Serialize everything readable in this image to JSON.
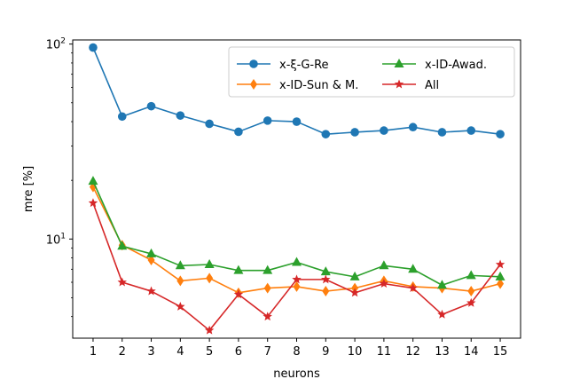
{
  "chart_data": {
    "type": "line",
    "title": "",
    "xlabel": "neurons",
    "ylabel": "mre [%]",
    "yscale": "log",
    "ylim": [
      3.1,
      105
    ],
    "xlim": [
      0.3,
      15.7
    ],
    "x": [
      1,
      2,
      3,
      4,
      5,
      6,
      7,
      8,
      9,
      10,
      11,
      12,
      13,
      14,
      15
    ],
    "x_ticks": [
      "1",
      "2",
      "3",
      "4",
      "5",
      "6",
      "7",
      "8",
      "9",
      "10",
      "11",
      "12",
      "13",
      "14",
      "15"
    ],
    "y_major_ticks": [
      {
        "value": 10,
        "base": "10",
        "exp": "1"
      },
      {
        "value": 100,
        "base": "10",
        "exp": "2"
      }
    ],
    "legend_position": "top-right",
    "legend_columns": 2,
    "series": [
      {
        "name": "x-ξ-G-Re",
        "color": "#1f77b4",
        "marker": "circle",
        "values": [
          96,
          42.5,
          48,
          43,
          39,
          35.5,
          40.5,
          40,
          34.5,
          35.3,
          36,
          37.5,
          35.3,
          36,
          34.5
        ]
      },
      {
        "name": "x-ID-Sun & M.",
        "color": "#ff7f0e",
        "marker": "diamond",
        "values": [
          18.5,
          9.3,
          7.8,
          6.1,
          6.3,
          5.3,
          5.6,
          5.7,
          5.4,
          5.6,
          6.1,
          5.7,
          5.6,
          5.4,
          5.9
        ]
      },
      {
        "name": "x-ID-Awad.",
        "color": "#2ca02c",
        "marker": "triangle",
        "values": [
          19.8,
          9.2,
          8.4,
          7.3,
          7.4,
          6.9,
          6.9,
          7.6,
          6.8,
          6.4,
          7.3,
          7.0,
          5.8,
          6.5,
          6.4
        ]
      },
      {
        "name": "All",
        "color": "#d62728",
        "marker": "star",
        "values": [
          15.3,
          6.0,
          5.4,
          4.5,
          3.4,
          5.2,
          4.0,
          6.2,
          6.2,
          5.3,
          5.9,
          5.6,
          4.1,
          4.7,
          7.4
        ]
      }
    ]
  }
}
